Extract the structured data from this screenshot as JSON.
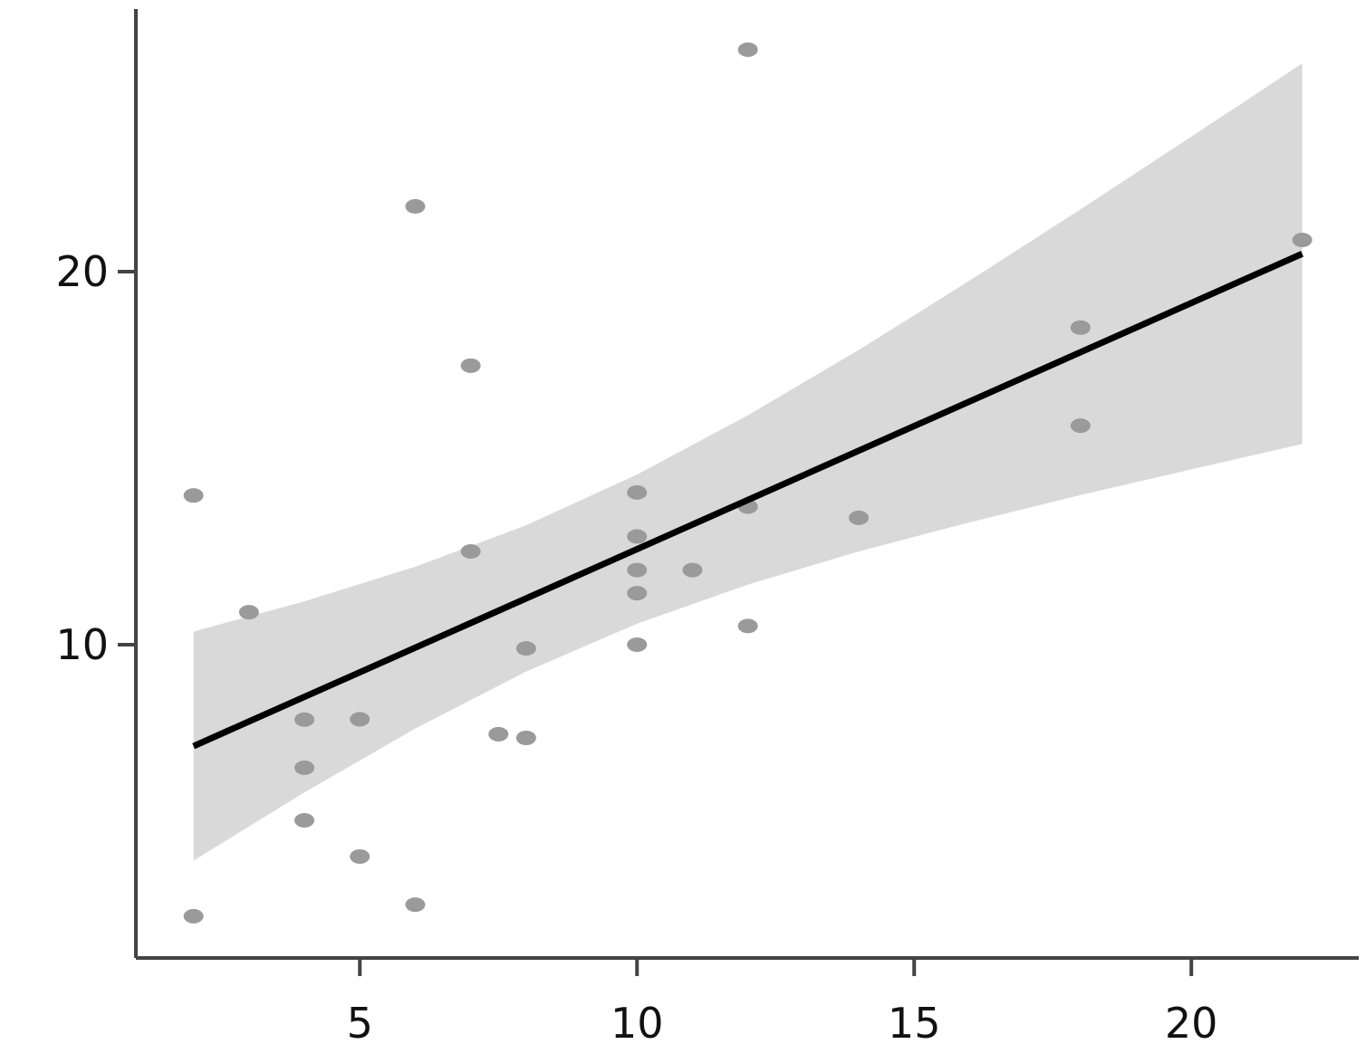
{
  "chart_data": {
    "type": "scatter",
    "x": [
      2,
      2,
      3,
      4,
      4,
      4,
      5,
      5,
      6,
      6,
      7,
      7,
      7.5,
      8,
      8,
      10,
      10,
      10,
      10,
      10,
      11,
      12,
      12,
      12,
      14,
      18,
      18,
      22
    ],
    "y": [
      14.0,
      2.72,
      10.87,
      7.99,
      6.7,
      5.29,
      8.0,
      4.32,
      21.75,
      3.03,
      17.48,
      12.5,
      7.6,
      9.9,
      7.5,
      14.08,
      12.9,
      12.0,
      11.38,
      10.0,
      12.0,
      25.95,
      13.7,
      10.5,
      13.4,
      18.5,
      15.87,
      20.85
    ],
    "color": "#9a9a9a",
    "fit": {
      "x": [
        2,
        22
      ],
      "y": [
        7.28,
        20.48
      ],
      "color": "#000000"
    },
    "band": {
      "x": [
        2,
        4,
        6,
        8,
        10,
        12,
        14,
        16,
        18,
        20,
        22
      ],
      "lower": [
        4.21,
        6.04,
        7.75,
        9.28,
        10.56,
        11.61,
        12.5,
        13.28,
        14.01,
        14.7,
        15.38
      ],
      "upper": [
        10.35,
        11.16,
        12.09,
        13.2,
        14.56,
        16.15,
        17.9,
        19.76,
        21.67,
        23.62,
        25.58
      ],
      "color": "#d9d9d9"
    },
    "xlim": [
      0.96,
      23.02
    ],
    "ylim": [
      1.6,
      27.04
    ],
    "xticks": [
      5,
      10,
      15,
      20
    ],
    "yticks": [
      10,
      20
    ],
    "grid": false
  }
}
